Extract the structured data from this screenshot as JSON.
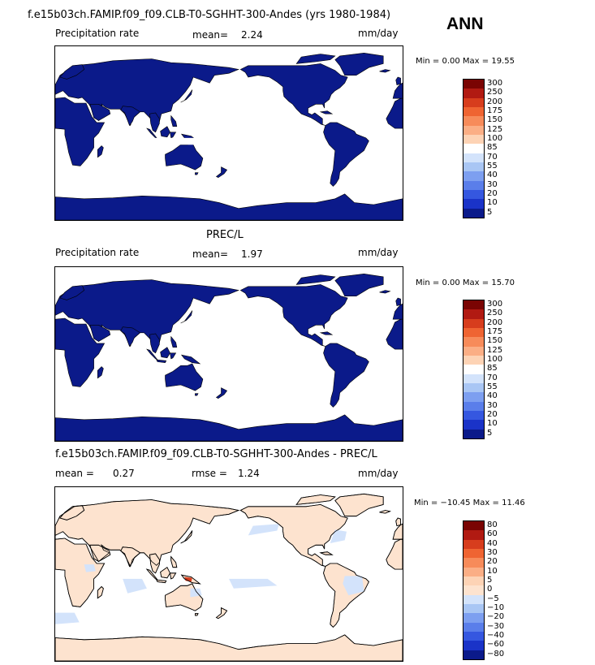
{
  "page": {
    "title": "f.e15b03ch.FAMIP.f09_f09.CLB-T0-SGHHT-300-Andes (yrs 1980-1984)",
    "season": "ANN"
  },
  "panels": [
    {
      "id": "model",
      "heading": "",
      "variable": "Precipitation rate",
      "mean_label": "mean=",
      "mean_value": "2.24",
      "extra_label": "",
      "extra_value": "",
      "units": "mm/day",
      "minmax": "Min =    0.00 Max =   19.55",
      "fill_color": "#0b1a8a",
      "ocean_color": "#ffffff",
      "colorbar": {
        "labels": [
          "300",
          "250",
          "200",
          "175",
          "150",
          "125",
          "100",
          "85",
          "70",
          "55",
          "40",
          "30",
          "20",
          "10",
          "5"
        ],
        "colors": [
          "#7a0403",
          "#b11a12",
          "#d73d1d",
          "#ef6432",
          "#f78b5a",
          "#fbae85",
          "#fdd3b5",
          "#ffffff",
          "#d3e3fb",
          "#a9c6f4",
          "#7d9ff0",
          "#5a7eea",
          "#3557e0",
          "#1a33c8",
          "#0b1a8a"
        ]
      }
    },
    {
      "id": "obs",
      "heading": "PREC/L",
      "variable": "Precipitation rate",
      "mean_label": "mean=",
      "mean_value": "1.97",
      "extra_label": "",
      "extra_value": "",
      "units": "mm/day",
      "minmax": "Min =    0.00 Max =   15.70",
      "fill_color": "#0b1a8a",
      "ocean_color": "#ffffff",
      "colorbar": {
        "labels": [
          "300",
          "250",
          "200",
          "175",
          "150",
          "125",
          "100",
          "85",
          "70",
          "55",
          "40",
          "30",
          "20",
          "10",
          "5"
        ],
        "colors": [
          "#7a0403",
          "#b11a12",
          "#d73d1d",
          "#ef6432",
          "#f78b5a",
          "#fbae85",
          "#fdd3b5",
          "#ffffff",
          "#d3e3fb",
          "#a9c6f4",
          "#7d9ff0",
          "#5a7eea",
          "#3557e0",
          "#1a33c8",
          "#0b1a8a"
        ]
      }
    },
    {
      "id": "diff",
      "heading": "f.e15b03ch.FAMIP.f09_f09.CLB-T0-SGHHT-300-Andes - PREC/L",
      "variable": "",
      "mean_label": "mean =",
      "mean_value": "0.27",
      "extra_label": "rmse =",
      "extra_value": "1.24",
      "units": "mm/day",
      "minmax": "Min = −10.45 Max =   11.46",
      "fill_color": "#fde3cf",
      "ocean_color": "#ffffff",
      "colorbar": {
        "labels": [
          "80",
          "60",
          "40",
          "30",
          "20",
          "10",
          "5",
          "0",
          "−5",
          "−10",
          "−20",
          "−30",
          "−40",
          "−60",
          "−80"
        ],
        "colors": [
          "#7a0403",
          "#b11a12",
          "#d73d1d",
          "#ef6432",
          "#f78b5a",
          "#fbae85",
          "#fdd3b5",
          "#fde3cf",
          "#d3e3fb",
          "#a9c6f4",
          "#7d9ff0",
          "#5a7eea",
          "#3557e0",
          "#1a33c8",
          "#0b1a8a"
        ]
      }
    }
  ],
  "chart_data": [
    {
      "type": "heatmap",
      "title": "Precipitation rate",
      "units": "mm/day",
      "mean": 2.24,
      "min": 0.0,
      "max": 19.55,
      "colorbar_levels": [
        5,
        10,
        20,
        30,
        40,
        55,
        70,
        85,
        100,
        125,
        150,
        175,
        200,
        250,
        300
      ]
    },
    {
      "type": "heatmap",
      "title": "PREC/L",
      "units": "mm/day",
      "mean": 1.97,
      "min": 0.0,
      "max": 15.7,
      "colorbar_levels": [
        5,
        10,
        20,
        30,
        40,
        55,
        70,
        85,
        100,
        125,
        150,
        175,
        200,
        250,
        300
      ]
    },
    {
      "type": "heatmap",
      "title": "f.e15b03ch.FAMIP.f09_f09.CLB-T0-SGHHT-300-Andes - PREC/L",
      "units": "mm/day",
      "mean": 0.27,
      "rmse": 1.24,
      "min": -10.45,
      "max": 11.46,
      "colorbar_levels": [
        -80,
        -60,
        -40,
        -30,
        -20,
        -10,
        -5,
        0,
        5,
        10,
        20,
        30,
        40,
        60,
        80
      ]
    }
  ]
}
